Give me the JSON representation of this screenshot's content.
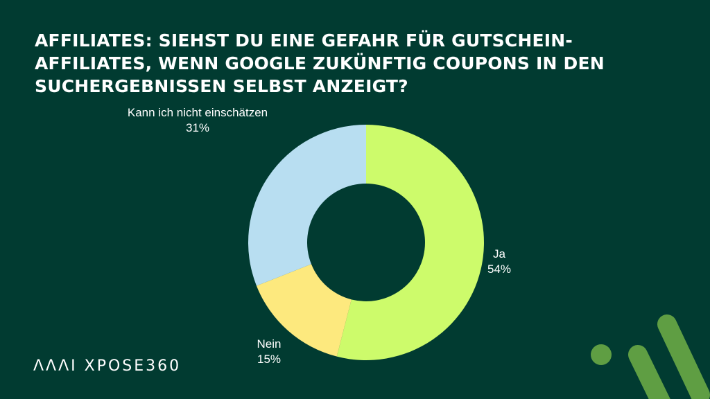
{
  "chart_data": {
    "type": "pie",
    "variant": "donut",
    "title": "AFFILIATES: SIEHST DU EINE GEFAHR FÜR GUTSCHEIN-AFFILIATES, WENN GOOGLE ZUKÜNFTIG COUPONS IN DEN SUCHERGEBNISSEN SELBST ANZEIGT?",
    "slices": [
      {
        "label": "Ja",
        "value": 54,
        "value_label": "54%",
        "color": "#cdfb6b"
      },
      {
        "label": "Nein",
        "value": 15,
        "value_label": "15%",
        "color": "#fde97e"
      },
      {
        "label": "Kann ich nicht einschätzen",
        "value": 31,
        "value_label": "31%",
        "color": "#b8def1"
      }
    ],
    "start": "12 o'clock",
    "direction": "clockwise",
    "legend": "none"
  },
  "brand": {
    "logo_text": "ΛΛΛI XPOSE360"
  },
  "colors": {
    "background": "#013b31",
    "text": "#ffffff",
    "accent": "#5f9e43"
  }
}
